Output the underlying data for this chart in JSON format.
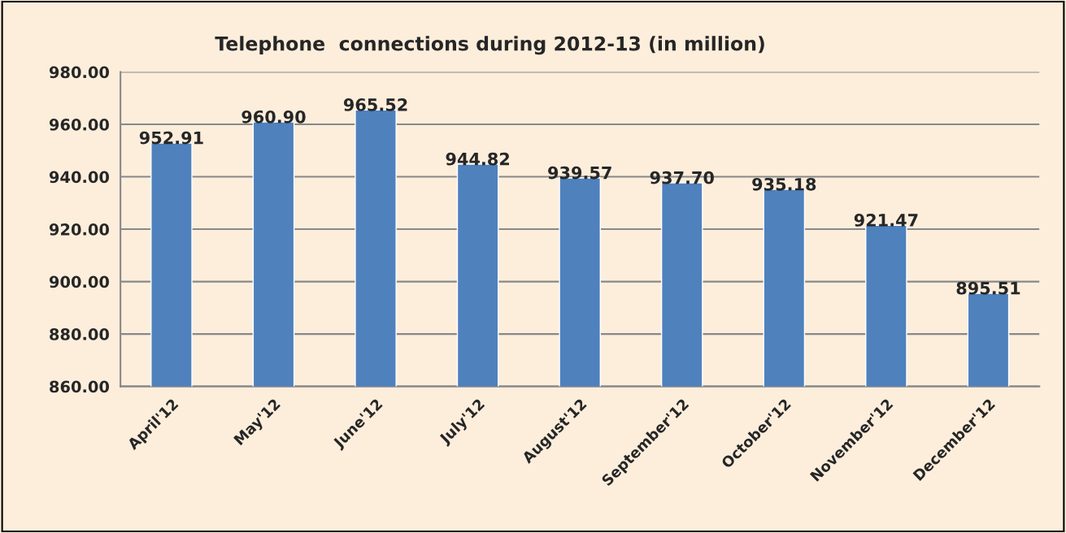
{
  "chart_data": {
    "type": "bar",
    "title": "Telephone  connections during 2012-13 (in million)",
    "categories": [
      "April'12",
      "May'12",
      "June'12",
      "July'12",
      "August'12",
      "September'12",
      "October'12",
      "November'12",
      "December'12"
    ],
    "values": [
      952.91,
      960.9,
      965.52,
      944.82,
      939.57,
      937.7,
      935.18,
      921.47,
      895.51
    ],
    "value_labels": [
      "952.91",
      "960.90",
      "965.52",
      "944.82",
      "939.57",
      "937.70",
      "935.18",
      "921.47",
      "895.51"
    ],
    "color": "#4f81bd",
    "ylim": [
      860,
      980
    ],
    "yticks": [
      {
        "value": 860,
        "label": "860.00"
      },
      {
        "value": 880,
        "label": "880.00"
      },
      {
        "value": 900,
        "label": "900.00"
      },
      {
        "value": 920,
        "label": "920.00"
      },
      {
        "value": 940,
        "label": "940.00"
      },
      {
        "value": 960,
        "label": "960.00"
      },
      {
        "value": 980,
        "label": "980.00"
      }
    ],
    "grid": "y",
    "legend": false
  }
}
